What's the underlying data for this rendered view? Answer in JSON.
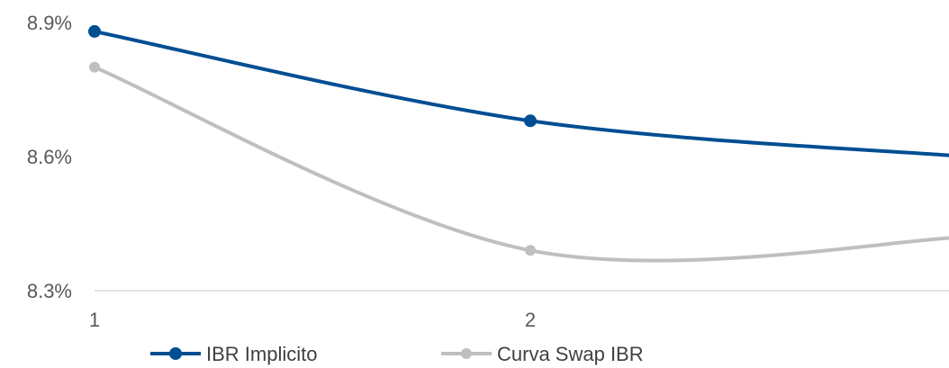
{
  "chart_data": {
    "type": "line",
    "x": [
      1,
      2,
      3
    ],
    "x_tick_labels": [
      "1",
      "2"
    ],
    "y_tick_labels": [
      "8.9%",
      "8.6%",
      "8.3%"
    ],
    "y_ticks": [
      8.9,
      8.6,
      8.3
    ],
    "ylim": [
      8.3,
      8.9
    ],
    "grid": false,
    "legend_position": "bottom",
    "series": [
      {
        "name": "IBR Implicito",
        "color": "#004e92",
        "values": [
          8.88,
          8.68,
          8.6
        ]
      },
      {
        "name": "Curva Swap IBR",
        "color": "#bfbfbf",
        "values": [
          8.8,
          8.39,
          8.42
        ]
      }
    ]
  }
}
